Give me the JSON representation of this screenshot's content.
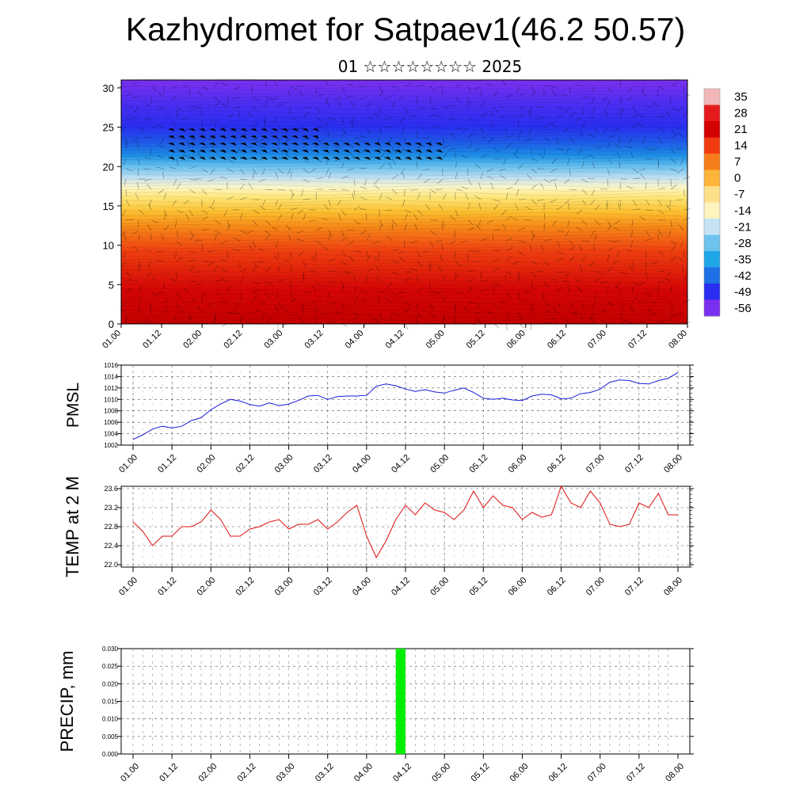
{
  "title": "Kazhydromet for Satpaev1(46.2 50.57)",
  "subtitle": "01 ☆☆☆☆☆☆☆☆ 2025",
  "chart_data": [
    {
      "type": "heatmap",
      "panel": "wind-temperature-cross-section",
      "x_ticks": [
        "01.00",
        "01.12",
        "02.00",
        "02.12",
        "03.00",
        "03.12",
        "04.00",
        "04.12",
        "05.00",
        "05.12",
        "06.00",
        "06.12",
        "07.00",
        "07.12",
        "08.00"
      ],
      "y_ticks": [
        "0",
        "5",
        "10",
        "15",
        "20",
        "25",
        "30"
      ],
      "ylim": [
        0,
        31
      ],
      "colorbar": {
        "labels": [
          "35",
          "28",
          "21",
          "14",
          "7",
          "0",
          "-7",
          "-14",
          "-21",
          "-28",
          "-35",
          "-42",
          "-49",
          "-56"
        ],
        "colors": [
          "#f2b8b8",
          "#e41a1c",
          "#d40000",
          "#f03c10",
          "#f77d18",
          "#fdb43a",
          "#fde08a",
          "#fdf5c0",
          "#c6e3f5",
          "#6cc4ee",
          "#1ea6e8",
          "#1f6fe6",
          "#2a2ef0",
          "#7b2ff0"
        ]
      }
    },
    {
      "type": "line",
      "panel": "pmsl",
      "ylabel": "PMSL",
      "x_ticks": [
        "01.00",
        "01.12",
        "02.00",
        "02.12",
        "03.00",
        "03.12",
        "04.00",
        "04.12",
        "05.00",
        "05.12",
        "06.00",
        "06.12",
        "07.00",
        "07.12",
        "08.00"
      ],
      "y_ticks": [
        "1016",
        "1014",
        "1012",
        "1010",
        "1008",
        "1006",
        "1004",
        "1002"
      ],
      "ylim": [
        1002,
        1016
      ],
      "series": [
        {
          "color": "#1a1adc",
          "values": [
            1003.0,
            1003.8,
            1004.8,
            1005.3,
            1005.0,
            1005.3,
            1006.3,
            1006.8,
            1008.2,
            1009.2,
            1010.0,
            1009.7,
            1009.1,
            1008.8,
            1009.4,
            1008.9,
            1009.2,
            1009.8,
            1010.6,
            1010.7,
            1010.0,
            1010.5,
            1010.6,
            1010.6,
            1010.7,
            1012.3,
            1012.7,
            1012.4,
            1011.8,
            1011.4,
            1011.7,
            1011.3,
            1011.1,
            1011.6,
            1012.0,
            1011.2,
            1010.2,
            1010.0,
            1010.2,
            1009.9,
            1009.8,
            1010.6,
            1010.9,
            1010.8,
            1010.1,
            1010.2,
            1011.0,
            1011.2,
            1011.8,
            1013.0,
            1013.4,
            1013.3,
            1012.8,
            1012.7,
            1013.3,
            1013.7,
            1014.7
          ]
        }
      ]
    },
    {
      "type": "line",
      "panel": "temp-2m",
      "ylabel": "TEMP at 2 M",
      "x_ticks": [
        "01.00",
        "01.12",
        "02.00",
        "02.12",
        "03.00",
        "03.12",
        "04.00",
        "04.12",
        "05.00",
        "05.12",
        "06.00",
        "06.12",
        "07.00",
        "07.12",
        "08.00"
      ],
      "y_ticks": [
        "23.6",
        "23.2",
        "22.8",
        "22.4",
        "22.0"
      ],
      "ylim": [
        21.95,
        23.65
      ],
      "series": [
        {
          "color": "#e01010",
          "values": [
            22.9,
            22.7,
            22.4,
            22.6,
            22.6,
            22.8,
            22.8,
            22.9,
            23.15,
            22.95,
            22.6,
            22.6,
            22.75,
            22.8,
            22.9,
            22.95,
            22.75,
            22.85,
            22.85,
            22.95,
            22.75,
            22.9,
            23.1,
            23.25,
            22.6,
            22.15,
            22.5,
            22.95,
            23.25,
            23.05,
            23.3,
            23.15,
            23.1,
            22.95,
            23.15,
            23.55,
            23.2,
            23.45,
            23.25,
            23.2,
            22.95,
            23.1,
            23.0,
            23.05,
            23.65,
            23.3,
            23.2,
            23.55,
            23.3,
            22.85,
            22.8,
            22.85,
            23.3,
            23.2,
            23.5,
            23.05,
            23.05
          ]
        }
      ]
    },
    {
      "type": "bar",
      "panel": "precip",
      "ylabel": "PRECIP, mm",
      "x_ticks": [
        "01.00",
        "01.12",
        "02.00",
        "02.12",
        "03.00",
        "03.12",
        "04.00",
        "04.12",
        "05.00",
        "05.12",
        "06.00",
        "06.12",
        "07.00",
        "07.12",
        "08.00"
      ],
      "y_ticks": [
        "0.030",
        "0.025",
        "0.020",
        "0.015",
        "0.010",
        "0.005",
        "0.000"
      ],
      "ylim": [
        0,
        0.03
      ],
      "bars": [
        {
          "step": 27,
          "value": 0.03,
          "color": "#00ee00"
        }
      ]
    }
  ]
}
